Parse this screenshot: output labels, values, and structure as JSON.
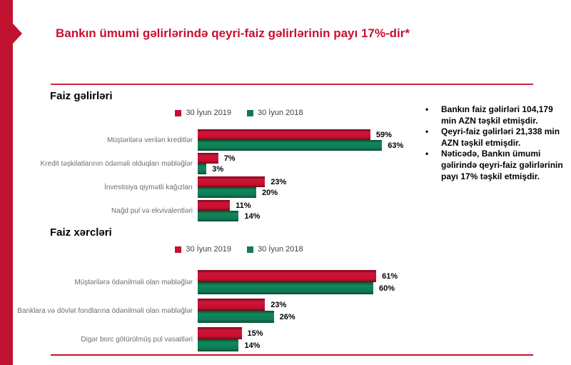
{
  "slide": {
    "title": "Bankın ümumi gəlirlərində qeyri-faiz gəlirlərinin payı 17%-dir*",
    "accent_color": "#C11330",
    "title_color": "#C8102E"
  },
  "chart_data": [
    {
      "type": "bar",
      "orientation": "horizontal",
      "title": "Faiz gəlirləri",
      "categories": [
        "Müştərilərə verilən kreditlər",
        "Kredit təşkilatlarının ödəməli olduqları məbləğlər",
        "İnvestisiya qiymətli kağızları",
        "Nağd pul və ekvivalentləri"
      ],
      "series": [
        {
          "name": "30 İyun 2019",
          "color": "#C8102E",
          "values": [
            59,
            7,
            23,
            11
          ]
        },
        {
          "name": "30 İyun 2018",
          "color": "#0E7C52",
          "values": [
            63,
            3,
            20,
            14
          ]
        }
      ],
      "value_suffix": "%",
      "xlim": [
        0,
        65
      ],
      "legend_position": "top",
      "grid": false
    },
    {
      "type": "bar",
      "orientation": "horizontal",
      "title": "Faiz xərcləri",
      "categories": [
        "Müştərilərə ödənilməli olan məbləğlər",
        "Banklara və dövlət fondlarına ödənilməli olan məbləğlər",
        "Digər borc götürülmüş pul vəsaitləri"
      ],
      "series": [
        {
          "name": "30 İyun 2019",
          "color": "#C8102E",
          "values": [
            61,
            23,
            15
          ]
        },
        {
          "name": "30 İyun 2018",
          "color": "#0E7C52",
          "values": [
            60,
            26,
            14
          ]
        }
      ],
      "value_suffix": "%",
      "xlim": [
        0,
        65
      ],
      "legend_position": "top",
      "grid": false
    }
  ],
  "notes": {
    "items": [
      "Bankın faiz gəlirləri 104,179 min AZN təşkil etmişdir.",
      "Qeyri-faiz gəlirləri  21,338 min AZN təşkil etmişdir.",
      "Nəticədə, Bankın ümumi gəlirində qeyri-faiz gəlirlərinin payı 17% təşkil etmişdir."
    ]
  }
}
